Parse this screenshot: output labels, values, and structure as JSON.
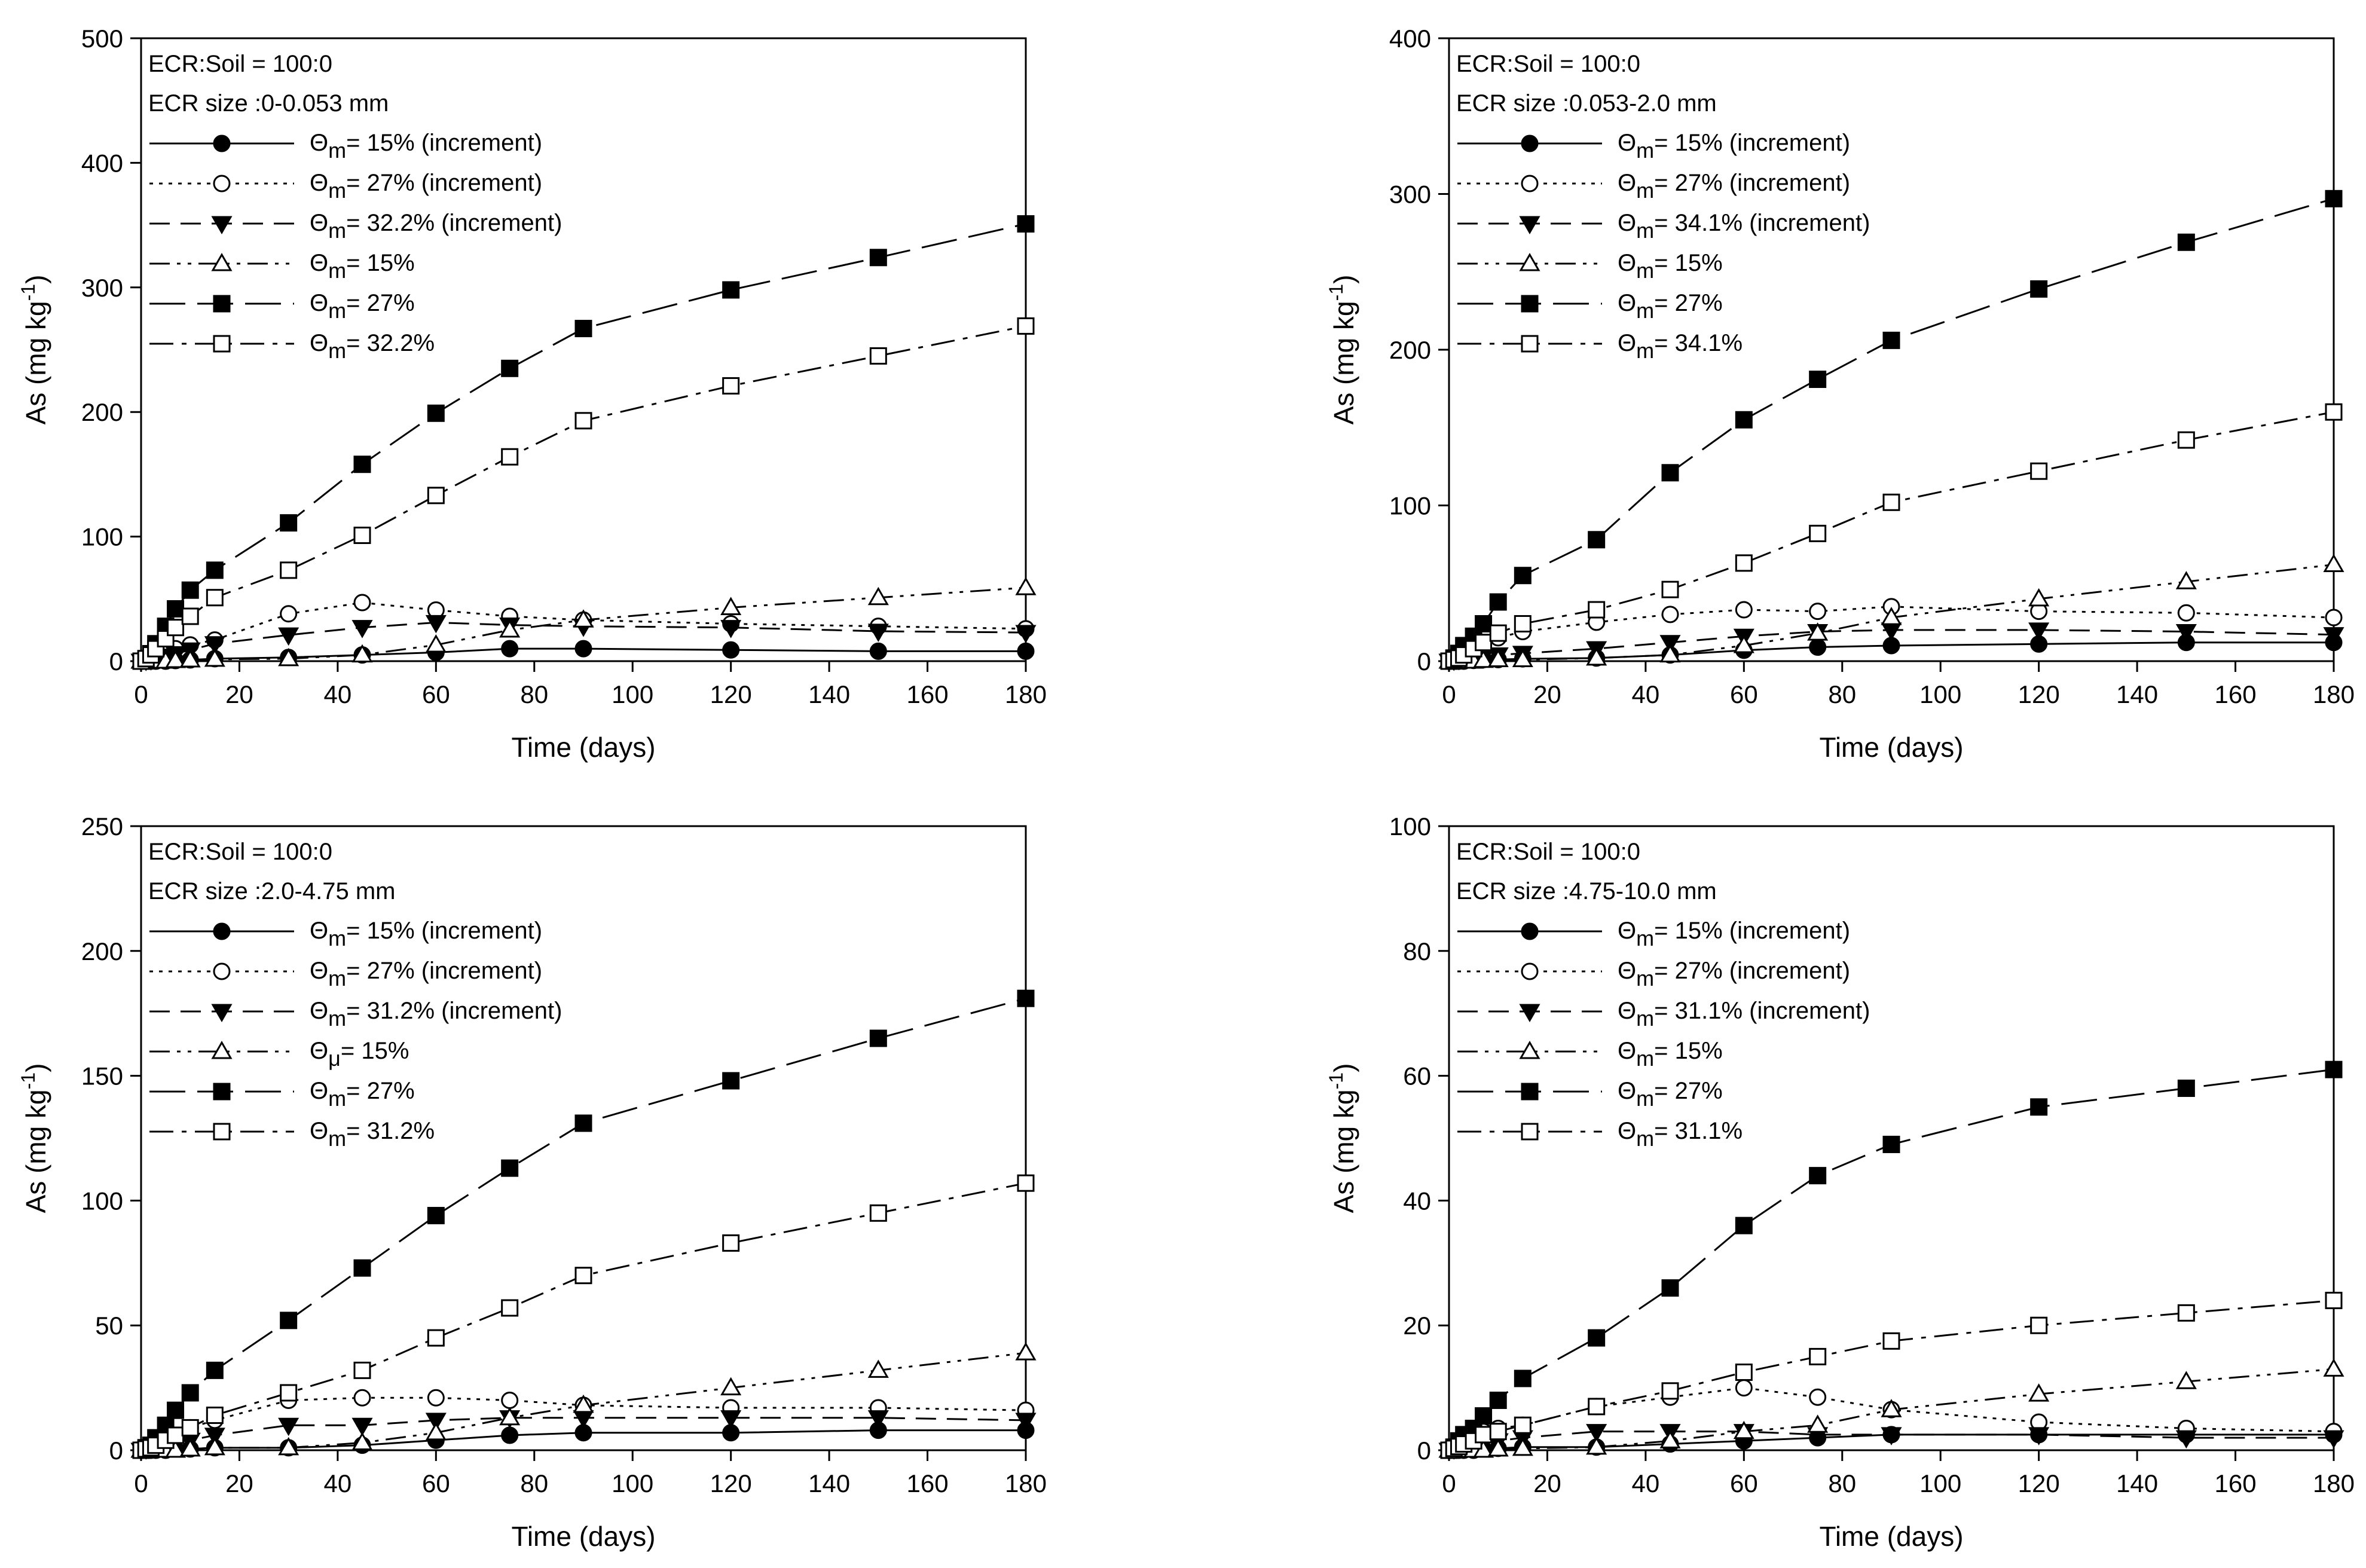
{
  "chart_data": [
    {
      "type": "line",
      "title": "",
      "annotations": [
        "ECR:Soil = 100:0",
        "ECR size :0-0.053 mm"
      ],
      "xlabel": "Time (days)",
      "ylabel": "As (mg kg-1)",
      "xlim": [
        0,
        180
      ],
      "ylim": [
        0,
        500
      ],
      "xticks": [
        0,
        20,
        40,
        60,
        80,
        100,
        120,
        140,
        160,
        180
      ],
      "yticks": [
        0,
        100,
        200,
        300,
        400,
        500
      ],
      "grid": false,
      "legend_position": "top-left",
      "series": [
        {
          "sym": "Θm",
          "name": "= 15% (increment)",
          "marker": "circle-filled",
          "dash": "solid",
          "x": [
            0,
            1,
            2,
            3,
            5,
            7,
            10,
            15,
            30,
            45,
            60,
            75,
            90,
            120,
            150,
            180
          ],
          "y": [
            0,
            0,
            0,
            0,
            0,
            0.5,
            1,
            2,
            3,
            5,
            7,
            10,
            10,
            9,
            8,
            8
          ]
        },
        {
          "sym": "Θm",
          "name": "= 27% (increment)",
          "marker": "circle-open",
          "dash": "dotted",
          "x": [
            0,
            1,
            2,
            3,
            5,
            7,
            10,
            15,
            30,
            45,
            60,
            75,
            90,
            120,
            150,
            180
          ],
          "y": [
            0,
            1,
            2,
            4,
            7,
            10,
            13,
            17,
            38,
            47,
            41,
            36,
            33,
            30,
            28,
            26
          ]
        },
        {
          "sym": "Θm",
          "name": "= 32.2% (increment)",
          "marker": "triangle-down-filled",
          "dash": "dashed",
          "x": [
            0,
            1,
            2,
            3,
            5,
            7,
            10,
            15,
            30,
            45,
            60,
            75,
            90,
            120,
            150,
            180
          ],
          "y": [
            0,
            0.5,
            1,
            2,
            4,
            6,
            9,
            14,
            21,
            27,
            31,
            29,
            28,
            27,
            24,
            23
          ]
        },
        {
          "sym": "Θm",
          "name": "= 15%",
          "marker": "triangle-up-open",
          "dash": "dashdotdot",
          "x": [
            0,
            1,
            2,
            3,
            5,
            7,
            10,
            15,
            30,
            45,
            60,
            75,
            90,
            120,
            150,
            180
          ],
          "y": [
            0,
            0,
            0,
            0,
            0,
            0.5,
            1,
            1.5,
            2,
            5,
            13,
            25,
            33,
            43,
            51,
            59
          ]
        },
        {
          "sym": "Θm",
          "name": "= 27%",
          "marker": "square-filled",
          "dash": "longdash",
          "x": [
            0,
            1,
            2,
            3,
            5,
            7,
            10,
            15,
            30,
            45,
            60,
            75,
            90,
            120,
            150,
            180
          ],
          "y": [
            0,
            2,
            6,
            14,
            28,
            42,
            57,
            73,
            111,
            158,
            199,
            235,
            267,
            298,
            324,
            351
          ]
        },
        {
          "sym": "Θm",
          "name": "= 32.2%",
          "marker": "square-open",
          "dash": "dashdot",
          "x": [
            0,
            1,
            2,
            3,
            5,
            7,
            10,
            15,
            30,
            45,
            60,
            75,
            90,
            120,
            150,
            180
          ],
          "y": [
            0,
            2,
            5,
            10,
            18,
            27,
            36,
            51,
            73,
            101,
            133,
            164,
            193,
            221,
            245,
            269
          ]
        }
      ]
    },
    {
      "type": "line",
      "title": "",
      "annotations": [
        "ECR:Soil = 100:0",
        "ECR size :0.053-2.0 mm"
      ],
      "xlabel": "Time (days)",
      "ylabel": "As (mg kg-1)",
      "xlim": [
        0,
        180
      ],
      "ylim": [
        0,
        400
      ],
      "xticks": [
        0,
        20,
        40,
        60,
        80,
        100,
        120,
        140,
        160,
        180
      ],
      "yticks": [
        0,
        100,
        200,
        300,
        400
      ],
      "grid": false,
      "legend_position": "top-left",
      "series": [
        {
          "sym": "Θm",
          "name": "= 15% (increment)",
          "marker": "circle-filled",
          "dash": "solid",
          "x": [
            0,
            1,
            2,
            3,
            5,
            7,
            10,
            15,
            30,
            45,
            60,
            75,
            90,
            120,
            150,
            180
          ],
          "y": [
            0,
            0,
            0,
            0,
            0.5,
            1,
            1,
            1.5,
            2,
            4,
            7,
            9,
            10,
            11,
            12,
            12
          ]
        },
        {
          "sym": "Θm",
          "name": "= 27% (increment)",
          "marker": "circle-open",
          "dash": "dotted",
          "x": [
            0,
            1,
            2,
            3,
            5,
            7,
            10,
            15,
            30,
            45,
            60,
            75,
            90,
            120,
            150,
            180
          ],
          "y": [
            0,
            1,
            2,
            4,
            8,
            12,
            15,
            19,
            25,
            30,
            33,
            32,
            35,
            32,
            31,
            28
          ]
        },
        {
          "sym": "Θm",
          "name": "= 34.1% (increment)",
          "marker": "triangle-down-filled",
          "dash": "dashed",
          "x": [
            0,
            1,
            2,
            3,
            5,
            7,
            10,
            15,
            30,
            45,
            60,
            75,
            90,
            120,
            150,
            180
          ],
          "y": [
            0,
            0.5,
            1,
            1.5,
            2,
            3,
            4,
            5,
            8,
            12,
            16,
            19,
            20,
            20,
            19,
            17
          ]
        },
        {
          "sym": "Θm",
          "name": "= 15%",
          "marker": "triangle-up-open",
          "dash": "dashdotdot",
          "x": [
            0,
            1,
            2,
            3,
            5,
            7,
            10,
            15,
            30,
            45,
            60,
            75,
            90,
            120,
            150,
            180
          ],
          "y": [
            0,
            0,
            0,
            0,
            0,
            0.5,
            1,
            1,
            2,
            4,
            10,
            18,
            28,
            40,
            51,
            62
          ]
        },
        {
          "sym": "Θm",
          "name": "= 27%",
          "marker": "square-filled",
          "dash": "longdash",
          "x": [
            0,
            1,
            2,
            3,
            5,
            7,
            10,
            15,
            30,
            45,
            60,
            75,
            90,
            120,
            150,
            180
          ],
          "y": [
            0,
            2,
            5,
            10,
            16,
            24,
            38,
            55,
            78,
            121,
            155,
            181,
            206,
            239,
            269,
            297
          ]
        },
        {
          "sym": "Θm",
          "name": "= 34.1%",
          "marker": "square-open",
          "dash": "dashdot",
          "x": [
            0,
            1,
            2,
            3,
            5,
            7,
            10,
            15,
            30,
            45,
            60,
            75,
            90,
            120,
            150,
            180
          ],
          "y": [
            0,
            1,
            2,
            4,
            8,
            12,
            18,
            24,
            33,
            46,
            63,
            82,
            102,
            122,
            142,
            160
          ]
        }
      ]
    },
    {
      "type": "line",
      "title": "",
      "annotations": [
        "ECR:Soil = 100:0",
        "ECR size :2.0-4.75 mm"
      ],
      "xlabel": "Time (days)",
      "ylabel": "As (mg kg-1)",
      "xlim": [
        0,
        180
      ],
      "ylim": [
        0,
        250
      ],
      "xticks": [
        0,
        20,
        40,
        60,
        80,
        100,
        120,
        140,
        160,
        180
      ],
      "yticks": [
        0,
        50,
        100,
        150,
        200,
        250
      ],
      "grid": false,
      "legend_position": "top-left",
      "series": [
        {
          "sym": "Θm",
          "name": "= 15% (increment)",
          "marker": "circle-filled",
          "dash": "solid",
          "x": [
            0,
            1,
            2,
            3,
            5,
            7,
            10,
            15,
            30,
            45,
            60,
            75,
            90,
            120,
            150,
            180
          ],
          "y": [
            0,
            0,
            0,
            0,
            0,
            0.5,
            0.5,
            1,
            1,
            2,
            4,
            6,
            7,
            7,
            8,
            8
          ]
        },
        {
          "sym": "Θm",
          "name": "= 27% (increment)",
          "marker": "circle-open",
          "dash": "dotted",
          "x": [
            0,
            1,
            2,
            3,
            5,
            7,
            10,
            15,
            30,
            45,
            60,
            75,
            90,
            120,
            150,
            180
          ],
          "y": [
            0,
            0.5,
            1,
            2,
            4,
            6,
            9,
            12,
            20,
            21,
            21,
            20,
            18,
            17,
            17,
            16
          ]
        },
        {
          "sym": "Θm",
          "name": "= 31.2% (increment)",
          "marker": "triangle-down-filled",
          "dash": "dashed",
          "x": [
            0,
            1,
            2,
            3,
            5,
            7,
            10,
            15,
            30,
            45,
            60,
            75,
            90,
            120,
            150,
            180
          ],
          "y": [
            0,
            0.5,
            1,
            1.5,
            2,
            3,
            4,
            6,
            10,
            10,
            12,
            13,
            13,
            13,
            13,
            12
          ]
        },
        {
          "sym": "Θμ",
          "name": "= 15%",
          "marker": "triangle-up-open",
          "dash": "dashdotdot",
          "x": [
            0,
            1,
            2,
            3,
            5,
            7,
            10,
            15,
            30,
            45,
            60,
            75,
            90,
            120,
            150,
            180
          ],
          "y": [
            0,
            0,
            0,
            0,
            0,
            0,
            0.5,
            1,
            1,
            3,
            7,
            13,
            18,
            25,
            32,
            39
          ]
        },
        {
          "sym": "Θm",
          "name": "= 27%",
          "marker": "square-filled",
          "dash": "longdash",
          "x": [
            0,
            1,
            2,
            3,
            5,
            7,
            10,
            15,
            30,
            45,
            60,
            75,
            90,
            120,
            150,
            180
          ],
          "y": [
            0,
            1,
            2,
            5,
            10,
            16,
            23,
            32,
            52,
            73,
            94,
            113,
            131,
            148,
            165,
            181
          ]
        },
        {
          "sym": "Θm",
          "name": "= 31.2%",
          "marker": "square-open",
          "dash": "dashdot",
          "x": [
            0,
            1,
            2,
            3,
            5,
            7,
            10,
            15,
            30,
            45,
            60,
            75,
            90,
            120,
            150,
            180
          ],
          "y": [
            0,
            0.5,
            1,
            2,
            4,
            6,
            9,
            14,
            23,
            32,
            45,
            57,
            70,
            83,
            95,
            107
          ]
        }
      ]
    },
    {
      "type": "line",
      "title": "",
      "annotations": [
        "ECR:Soil = 100:0",
        "ECR size :4.75-10.0 mm"
      ],
      "xlabel": "Time (days)",
      "ylabel": "As (mg kg-1)",
      "xlim": [
        0,
        180
      ],
      "ylim": [
        0,
        100
      ],
      "xticks": [
        0,
        20,
        40,
        60,
        80,
        100,
        120,
        140,
        160,
        180
      ],
      "yticks": [
        0,
        20,
        40,
        60,
        80,
        100
      ],
      "grid": false,
      "legend_position": "top-left",
      "series": [
        {
          "sym": "Θm",
          "name": "= 15% (increment)",
          "marker": "circle-filled",
          "dash": "solid",
          "x": [
            0,
            1,
            2,
            3,
            5,
            7,
            10,
            15,
            30,
            45,
            60,
            75,
            90,
            120,
            150,
            180
          ],
          "y": [
            0,
            0,
            0,
            0,
            0,
            0.2,
            0.3,
            0.5,
            0.5,
            1,
            1.5,
            2,
            2.5,
            2.5,
            2.5,
            2.5
          ]
        },
        {
          "sym": "Θm",
          "name": "= 27% (increment)",
          "marker": "circle-open",
          "dash": "dotted",
          "x": [
            0,
            1,
            2,
            3,
            5,
            7,
            10,
            15,
            30,
            45,
            60,
            75,
            90,
            120,
            150,
            180
          ],
          "y": [
            0,
            0.5,
            1,
            1.5,
            2.5,
            3,
            3.5,
            4,
            7,
            8.5,
            10,
            8.5,
            6.5,
            4.5,
            3.5,
            3
          ]
        },
        {
          "sym": "Θm",
          "name": "= 31.1% (increment)",
          "marker": "triangle-down-filled",
          "dash": "dashed",
          "x": [
            0,
            1,
            2,
            3,
            5,
            7,
            10,
            15,
            30,
            45,
            60,
            75,
            90,
            120,
            150,
            180
          ],
          "y": [
            0,
            0.2,
            0.4,
            0.6,
            1,
            1.2,
            1.5,
            2,
            3,
            3,
            3,
            2.5,
            2.5,
            2.5,
            2,
            2
          ]
        },
        {
          "sym": "Θm",
          "name": "= 15%",
          "marker": "triangle-up-open",
          "dash": "dashdotdot",
          "x": [
            0,
            1,
            2,
            3,
            5,
            7,
            10,
            15,
            30,
            45,
            60,
            75,
            90,
            120,
            150,
            180
          ],
          "y": [
            0,
            0,
            0,
            0,
            0,
            0,
            0.2,
            0.3,
            0.5,
            1.5,
            3,
            4,
            6.5,
            9,
            11,
            13
          ]
        },
        {
          "sym": "Θm",
          "name": "= 27%",
          "marker": "square-filled",
          "dash": "longdash",
          "x": [
            0,
            1,
            2,
            3,
            5,
            7,
            10,
            15,
            30,
            45,
            60,
            75,
            90,
            120,
            150,
            180
          ],
          "y": [
            0,
            0.5,
            1.5,
            2.5,
            3.5,
            5.5,
            8,
            11.5,
            18,
            26,
            36,
            44,
            49,
            55,
            58,
            61
          ]
        },
        {
          "sym": "Θm",
          "name": "= 31.1%",
          "marker": "square-open",
          "dash": "dashdot",
          "x": [
            0,
            1,
            2,
            3,
            5,
            7,
            10,
            15,
            30,
            45,
            60,
            75,
            90,
            120,
            150,
            180
          ],
          "y": [
            0,
            0.3,
            0.6,
            1,
            1.5,
            2.5,
            3,
            4,
            7,
            9.5,
            12.5,
            15,
            17.5,
            20,
            22,
            24
          ]
        }
      ]
    }
  ]
}
